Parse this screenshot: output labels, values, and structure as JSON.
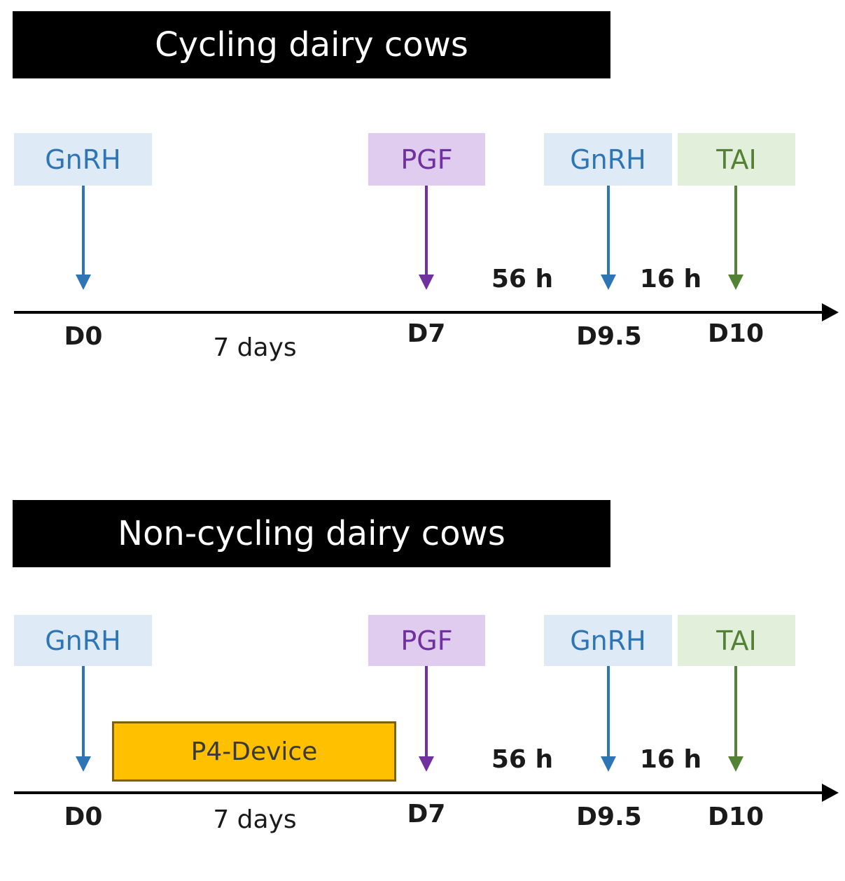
{
  "colors": {
    "gnrh_box": "#DEEBF7",
    "gnrh_text": "#2E75B6",
    "gnrh_arrow": "#2E75B6",
    "pgf_box": "#E0CCEE",
    "pgf_text": "#7030A0",
    "pgf_arrow": "#7030A0",
    "tai_box": "#E2EFDA",
    "tai_text": "#548235",
    "tai_arrow": "#548235",
    "device": "#FFC000"
  },
  "panels": [
    {
      "title": "Cycling dairy cows",
      "events": [
        {
          "label": "GnRH",
          "day": "D0"
        },
        {
          "label": "PGF",
          "day": "D7"
        },
        {
          "label": "GnRH",
          "day": "D9.5"
        },
        {
          "label": "TAI",
          "day": "D10"
        }
      ],
      "intervals": [
        "7 days",
        "56 h",
        "16 h"
      ]
    },
    {
      "title": "Non-cycling dairy cows",
      "events": [
        {
          "label": "GnRH",
          "day": "D0"
        },
        {
          "label": "PGF",
          "day": "D7"
        },
        {
          "label": "GnRH",
          "day": "D9.5"
        },
        {
          "label": "TAI",
          "day": "D10"
        }
      ],
      "intervals": [
        "7 days",
        "56 h",
        "16 h"
      ],
      "device": "P4-Device"
    }
  ]
}
